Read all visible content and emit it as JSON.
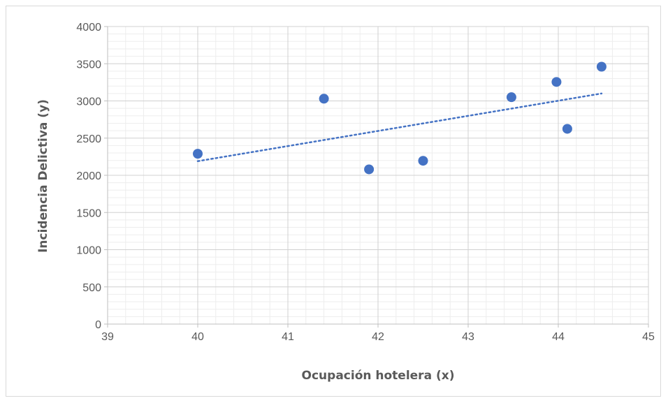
{
  "chart_data": {
    "type": "scatter",
    "title": "",
    "xlabel": "Ocupación hotelera (x)",
    "ylabel": "Incidencia Delictiva (y)",
    "xlim": [
      39,
      45
    ],
    "ylim": [
      0,
      4000
    ],
    "x_ticks": [
      39,
      40,
      41,
      42,
      43,
      44,
      45
    ],
    "y_ticks": [
      0,
      500,
      1000,
      1500,
      2000,
      2500,
      3000,
      3500,
      4000
    ],
    "x_tick_labels": [
      "39",
      "40",
      "41",
      "42",
      "43",
      "44",
      "45"
    ],
    "y_tick_labels": [
      "0",
      "500",
      "1000",
      "1500",
      "2000",
      "2500",
      "3000",
      "3500",
      "4000"
    ],
    "grid": true,
    "legend": "none",
    "series": [
      {
        "x": [
          40.0,
          41.4,
          41.9,
          42.5,
          43.48,
          43.98,
          44.1,
          44.48
        ],
        "y": [
          2290,
          3030,
          2080,
          2195,
          3050,
          3255,
          2625,
          3460
        ],
        "color": "#4472c4"
      }
    ],
    "trendline": {
      "type": "linear",
      "style": "dotted",
      "color": "#4472c4",
      "x": [
        40.0,
        44.48
      ],
      "y": [
        2190,
        3100
      ]
    }
  }
}
